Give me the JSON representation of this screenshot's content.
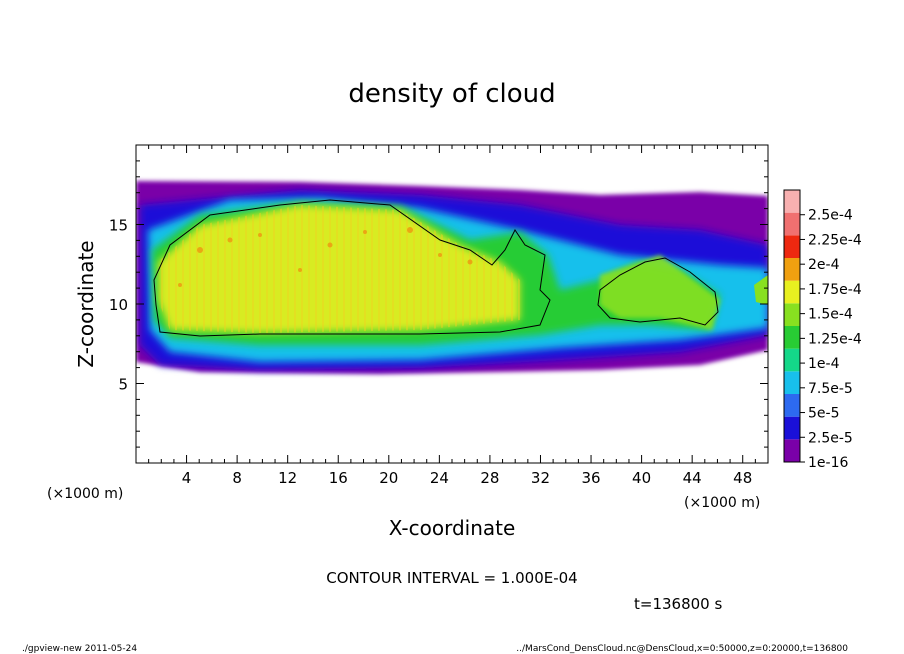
{
  "chart_data": {
    "type": "heatmap",
    "title": "density of cloud",
    "xlabel": "X-coordinate",
    "ylabel": "Z-coordinate",
    "x_unit": "(×1000 m)",
    "z_unit": "(×1000 m)",
    "xlim": [
      0,
      50
    ],
    "ylim": [
      0,
      20
    ],
    "xticks": [
      "4",
      "8",
      "12",
      "16",
      "20",
      "24",
      "28",
      "32",
      "36",
      "40",
      "44",
      "48"
    ],
    "yticks": [
      "5",
      "10",
      "15"
    ],
    "colorbar": {
      "labels": [
        "1e-16",
        "2.5e-5",
        "5e-5",
        "7.5e-5",
        "1e-4",
        "1.25e-4",
        "1.5e-4",
        "1.75e-4",
        "2e-4",
        "2.25e-4",
        "2.5e-4"
      ],
      "colors": [
        "#7a00a8",
        "#1a10d8",
        "#2d6af0",
        "#18c0ec",
        "#14d889",
        "#28cc34",
        "#88e020",
        "#e8f020",
        "#f0a010",
        "#ee2810",
        "#f07070",
        "#f8b0b0"
      ]
    },
    "contour_interval": "CONTOUR INTERVAL = 1.000E-04",
    "time": "t=136800 s"
  },
  "footer": {
    "left": "./gpview-new   2011-05-24",
    "right": "../MarsCond_DensCloud.nc@DensCloud,x=0:50000,z=0:20000,t=136800"
  }
}
